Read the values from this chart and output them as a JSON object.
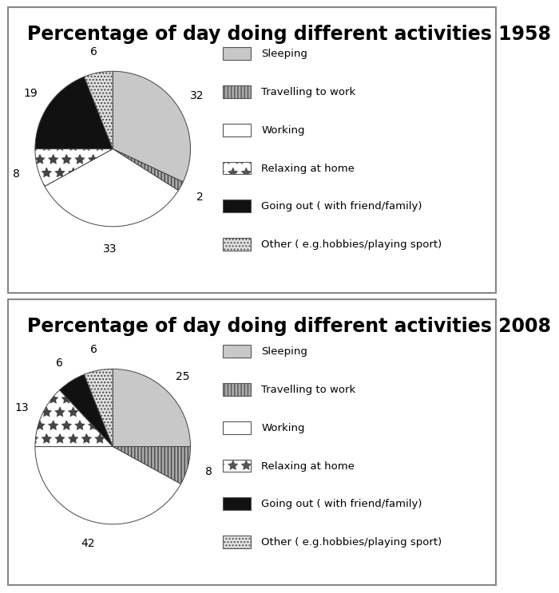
{
  "chart1": {
    "title": "Percentage of day doing different activities 1958",
    "values": [
      32,
      2,
      33,
      8,
      19,
      6
    ],
    "startangle": 90
  },
  "chart2": {
    "title": "Percentage of day doing different activities 2008",
    "values": [
      25,
      8,
      42,
      13,
      6,
      6
    ],
    "startangle": 90
  },
  "legend_labels": [
    "Sleeping",
    "Travelling to work",
    "Working",
    "Relaxing at home",
    "Going out ( with friend/family)",
    "Other ( e.g.hobbies/playing sport)"
  ],
  "slice_colors": [
    "#c8c8c8",
    "#aaaaaa",
    "#ffffff",
    "#ffffff",
    "#111111",
    "#e0e0e0"
  ],
  "slice_hatches": [
    "",
    "||||",
    "",
    "*",
    "",
    "...."
  ],
  "legend_colors": [
    "#c8c8c8",
    "#aaaaaa",
    "#ffffff",
    "#ffffff",
    "#111111",
    "#e0e0e0"
  ],
  "legend_hatches": [
    "",
    "||||",
    "",
    "*",
    "",
    "...."
  ],
  "title_fontsize": 17,
  "label_fontsize": 10,
  "figure_bg": "#ffffff"
}
